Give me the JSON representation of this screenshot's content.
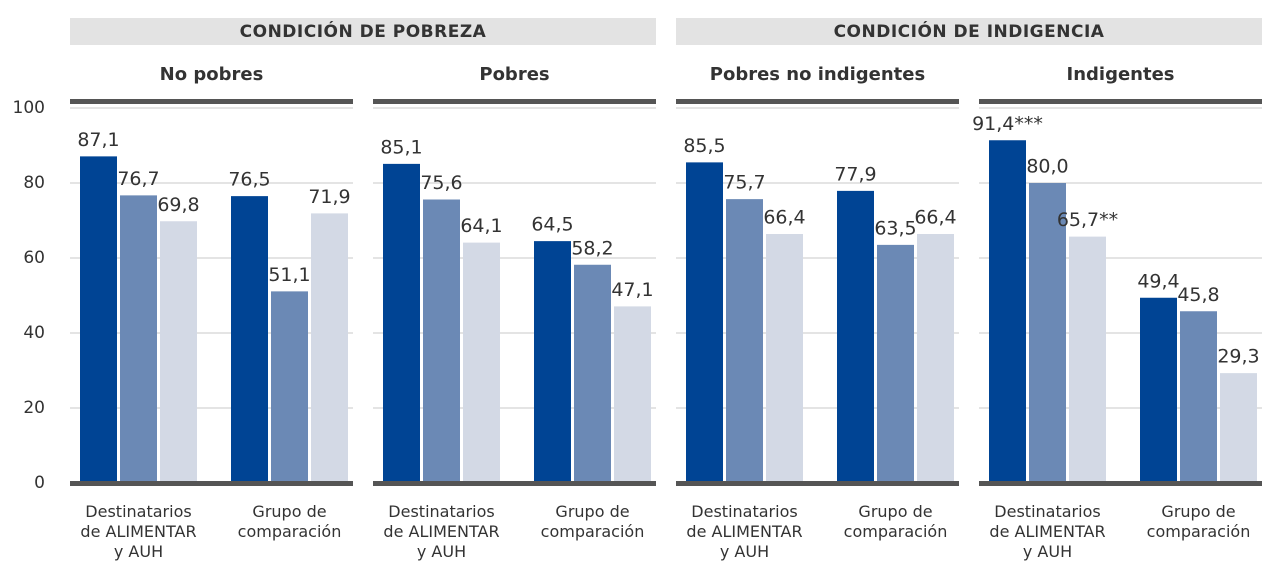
{
  "headers": [
    "CONDICIÓN DE POBREZA",
    "CONDICIÓN DE INDIGENCIA"
  ],
  "chart_data": [
    {
      "type": "bar",
      "title": "No pobres",
      "categories": [
        "Destinatarios\nde ALIMENTAR\ny AUH",
        "Grupo de\ncomparación"
      ],
      "series": [
        {
          "color": "#004494",
          "values": [
            87.1,
            76.5
          ],
          "value_labels": [
            "87,1",
            "76,5"
          ]
        },
        {
          "color": "#6b89b5",
          "values": [
            76.7,
            51.1
          ],
          "value_labels": [
            "76,7",
            "51,1"
          ]
        },
        {
          "color": "#d3d9e5",
          "values": [
            69.8,
            71.9
          ],
          "value_labels": [
            "69,8",
            "71,9"
          ]
        }
      ],
      "ylim": [
        0,
        100
      ],
      "yticks": [
        0,
        20,
        40,
        60,
        80,
        100
      ],
      "grid": true
    },
    {
      "type": "bar",
      "title": "Pobres",
      "categories": [
        "Destinatarios\nde ALIMENTAR\ny AUH",
        "Grupo de\ncomparación"
      ],
      "series": [
        {
          "color": "#004494",
          "values": [
            85.1,
            64.5
          ],
          "value_labels": [
            "85,1",
            "64,5"
          ]
        },
        {
          "color": "#6b89b5",
          "values": [
            75.6,
            58.2
          ],
          "value_labels": [
            "75,6",
            "58,2"
          ]
        },
        {
          "color": "#d3d9e5",
          "values": [
            64.1,
            47.1
          ],
          "value_labels": [
            "64,1",
            "47,1"
          ]
        }
      ],
      "ylim": [
        0,
        100
      ]
    },
    {
      "type": "bar",
      "title": "Pobres no indigentes",
      "categories": [
        "Destinatarios\nde ALIMENTAR\ny AUH",
        "Grupo de\ncomparación"
      ],
      "series": [
        {
          "color": "#004494",
          "values": [
            85.5,
            77.9
          ],
          "value_labels": [
            "85,5",
            "77,9"
          ]
        },
        {
          "color": "#6b89b5",
          "values": [
            75.7,
            63.5
          ],
          "value_labels": [
            "75,7",
            "63,5"
          ]
        },
        {
          "color": "#d3d9e5",
          "values": [
            66.4,
            66.4
          ],
          "value_labels": [
            "66,4",
            "66,4"
          ]
        }
      ],
      "ylim": [
        0,
        100
      ]
    },
    {
      "type": "bar",
      "title": "Indigentes",
      "categories": [
        "Destinatarios\nde ALIMENTAR\ny AUH",
        "Grupo de\ncomparación"
      ],
      "series": [
        {
          "color": "#004494",
          "values": [
            91.4,
            49.4
          ],
          "value_labels": [
            "91,4***",
            "49,4"
          ]
        },
        {
          "color": "#6b89b5",
          "values": [
            80.0,
            45.8
          ],
          "value_labels": [
            "80,0",
            "45,8"
          ]
        },
        {
          "color": "#d3d9e5",
          "values": [
            65.7,
            29.3
          ],
          "value_labels": [
            "65,7**",
            "29,3"
          ]
        }
      ],
      "ylim": [
        0,
        100
      ]
    }
  ]
}
